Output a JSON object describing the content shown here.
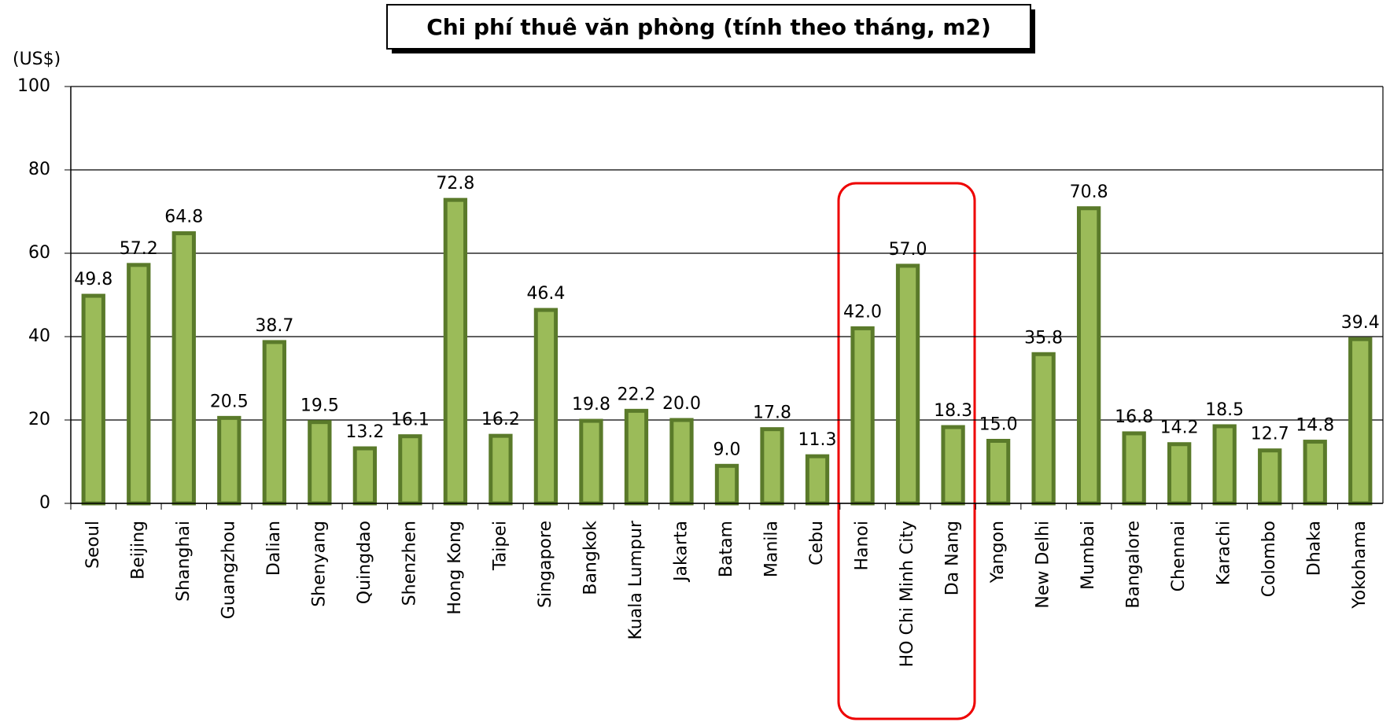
{
  "chart_data": {
    "type": "bar",
    "title": "Chi phí thuê văn phòng (tính theo tháng, m2)",
    "y_label": "(US$)",
    "categories": [
      "Seoul",
      "Beijing",
      "Shanghai",
      "Guangzhou",
      "Dalian",
      "Shenyang",
      "Quingdao",
      "Shenzhen",
      "Hong Kong",
      "Taipei",
      "Singapore",
      "Bangkok",
      "Kuala Lumpur",
      "Jakarta",
      "Batam",
      "Manila",
      "Cebu",
      "Hanoi",
      "HO Chi Minh City",
      "Da Nang",
      "Yangon",
      "New Delhi",
      "Mumbai",
      "Bangalore",
      "Chennai",
      "Karachi",
      "Colombo",
      "Dhaka",
      "Yokohama"
    ],
    "values": [
      49.8,
      57.2,
      64.8,
      20.5,
      38.7,
      19.5,
      13.2,
      16.1,
      72.8,
      16.2,
      46.4,
      19.8,
      22.2,
      20.0,
      9.0,
      17.8,
      11.3,
      42.0,
      57.0,
      18.3,
      15.0,
      35.8,
      70.8,
      16.8,
      14.2,
      18.5,
      12.7,
      14.8,
      39.4
    ],
    "value_labels": [
      "49.8",
      "57.2",
      "64.8",
      "20.5",
      "38.7",
      "19.5",
      "13.2",
      "16.1",
      "72.8",
      "16.2",
      "46.4",
      "19.8",
      "22.2",
      "20.0",
      "9.0",
      "17.8",
      "11.3",
      "42.0",
      "57.0",
      "18.3",
      "15.0",
      "35.8",
      "70.8",
      "16.8",
      "14.2",
      "18.5",
      "12.7",
      "14.8",
      "39.4"
    ],
    "color": "#9bbb59",
    "edge_color": "#5a7a2a",
    "ylim": [
      0,
      100
    ],
    "yticks": [
      0,
      20,
      40,
      60,
      80,
      100
    ],
    "grid": true
  }
}
